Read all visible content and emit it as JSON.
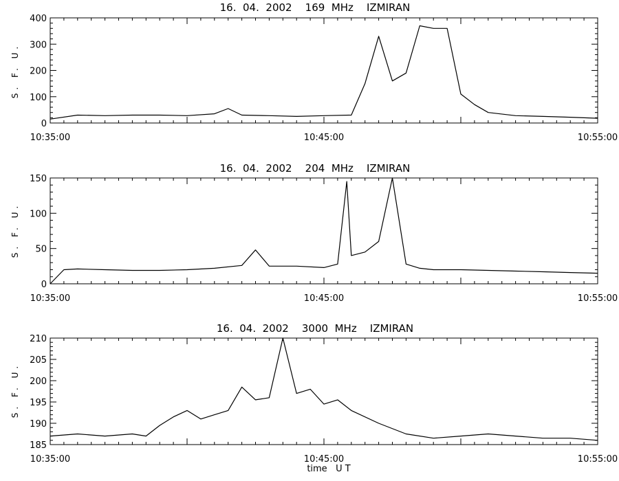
{
  "chart_data": [
    {
      "type": "line",
      "title": "16.  04.  2002    169  MHz    IZMIRAN",
      "ylabel": "S. F. U.",
      "xlabel": "",
      "x_tick_labels": [
        "10:35:00",
        "10:45:00",
        "10:55:00"
      ],
      "x_range": [
        "10:35:00",
        "10:55:00"
      ],
      "ylim": [
        0,
        400
      ],
      "y_ticks": [
        0,
        100,
        200,
        300,
        400
      ],
      "grid": false,
      "series": [
        {
          "x": [
            "10:35:00",
            "10:36:00",
            "10:37:00",
            "10:38:00",
            "10:39:00",
            "10:40:00",
            "10:41:00",
            "10:41:30",
            "10:42:00",
            "10:43:00",
            "10:44:00",
            "10:45:00",
            "10:46:00",
            "10:46:30",
            "10:47:00",
            "10:47:30",
            "10:48:00",
            "10:48:30",
            "10:49:00",
            "10:49:30",
            "10:50:00",
            "10:50:30",
            "10:51:00",
            "10:52:00",
            "10:53:00",
            "10:54:00",
            "10:55:00"
          ],
          "values": [
            15,
            30,
            28,
            30,
            30,
            28,
            35,
            55,
            30,
            28,
            25,
            28,
            30,
            150,
            330,
            160,
            190,
            370,
            360,
            360,
            110,
            70,
            40,
            28,
            25,
            22,
            18
          ]
        }
      ]
    },
    {
      "type": "line",
      "title": "16.  04.  2002    204  MHz    IZMIRAN",
      "ylabel": "S. F. U.",
      "xlabel": "",
      "x_tick_labels": [
        "10:35:00",
        "10:45:00",
        "10:55:00"
      ],
      "x_range": [
        "10:35:00",
        "10:55:00"
      ],
      "ylim": [
        0,
        150
      ],
      "y_ticks": [
        0,
        50,
        100,
        150
      ],
      "grid": false,
      "series": [
        {
          "x": [
            "10:35:00",
            "10:35:30",
            "10:36:00",
            "10:37:00",
            "10:38:00",
            "10:39:00",
            "10:40:00",
            "10:41:00",
            "10:42:00",
            "10:42:30",
            "10:43:00",
            "10:44:00",
            "10:45:00",
            "10:45:30",
            "10:45:50",
            "10:46:00",
            "10:46:30",
            "10:47:00",
            "10:47:30",
            "10:48:00",
            "10:48:30",
            "10:49:00",
            "10:50:00",
            "10:51:00",
            "10:52:00",
            "10:53:00",
            "10:54:00",
            "10:55:00"
          ],
          "values": [
            0,
            20,
            21,
            20,
            19,
            19,
            20,
            22,
            26,
            48,
            25,
            25,
            23,
            28,
            145,
            40,
            45,
            60,
            150,
            28,
            22,
            20,
            20,
            19,
            18,
            17,
            16,
            15
          ]
        }
      ]
    },
    {
      "type": "line",
      "title": "16.  04.  2002    3000  MHz    IZMIRAN",
      "ylabel": "S. F. U.",
      "xlabel": "time   U T",
      "x_tick_labels": [
        "10:35:00",
        "10:45:00",
        "10:55:00"
      ],
      "x_range": [
        "10:35:00",
        "10:55:00"
      ],
      "ylim": [
        185,
        210
      ],
      "y_ticks": [
        185,
        190,
        195,
        200,
        205,
        210
      ],
      "grid": false,
      "series": [
        {
          "x": [
            "10:35:00",
            "10:36:00",
            "10:37:00",
            "10:38:00",
            "10:38:30",
            "10:39:00",
            "10:39:30",
            "10:40:00",
            "10:40:30",
            "10:41:00",
            "10:41:30",
            "10:42:00",
            "10:42:30",
            "10:43:00",
            "10:43:30",
            "10:44:00",
            "10:44:30",
            "10:45:00",
            "10:45:30",
            "10:46:00",
            "10:47:00",
            "10:48:00",
            "10:49:00",
            "10:50:00",
            "10:51:00",
            "10:52:00",
            "10:53:00",
            "10:54:00",
            "10:55:00"
          ],
          "values": [
            187,
            187.5,
            187,
            187.5,
            187,
            189.5,
            191.5,
            193,
            191,
            192,
            193,
            198.5,
            195.5,
            196,
            210,
            197,
            198,
            194.5,
            195.5,
            193,
            190,
            187.5,
            186.5,
            187,
            187.5,
            187,
            186.5,
            186.5,
            186
          ]
        }
      ]
    }
  ]
}
